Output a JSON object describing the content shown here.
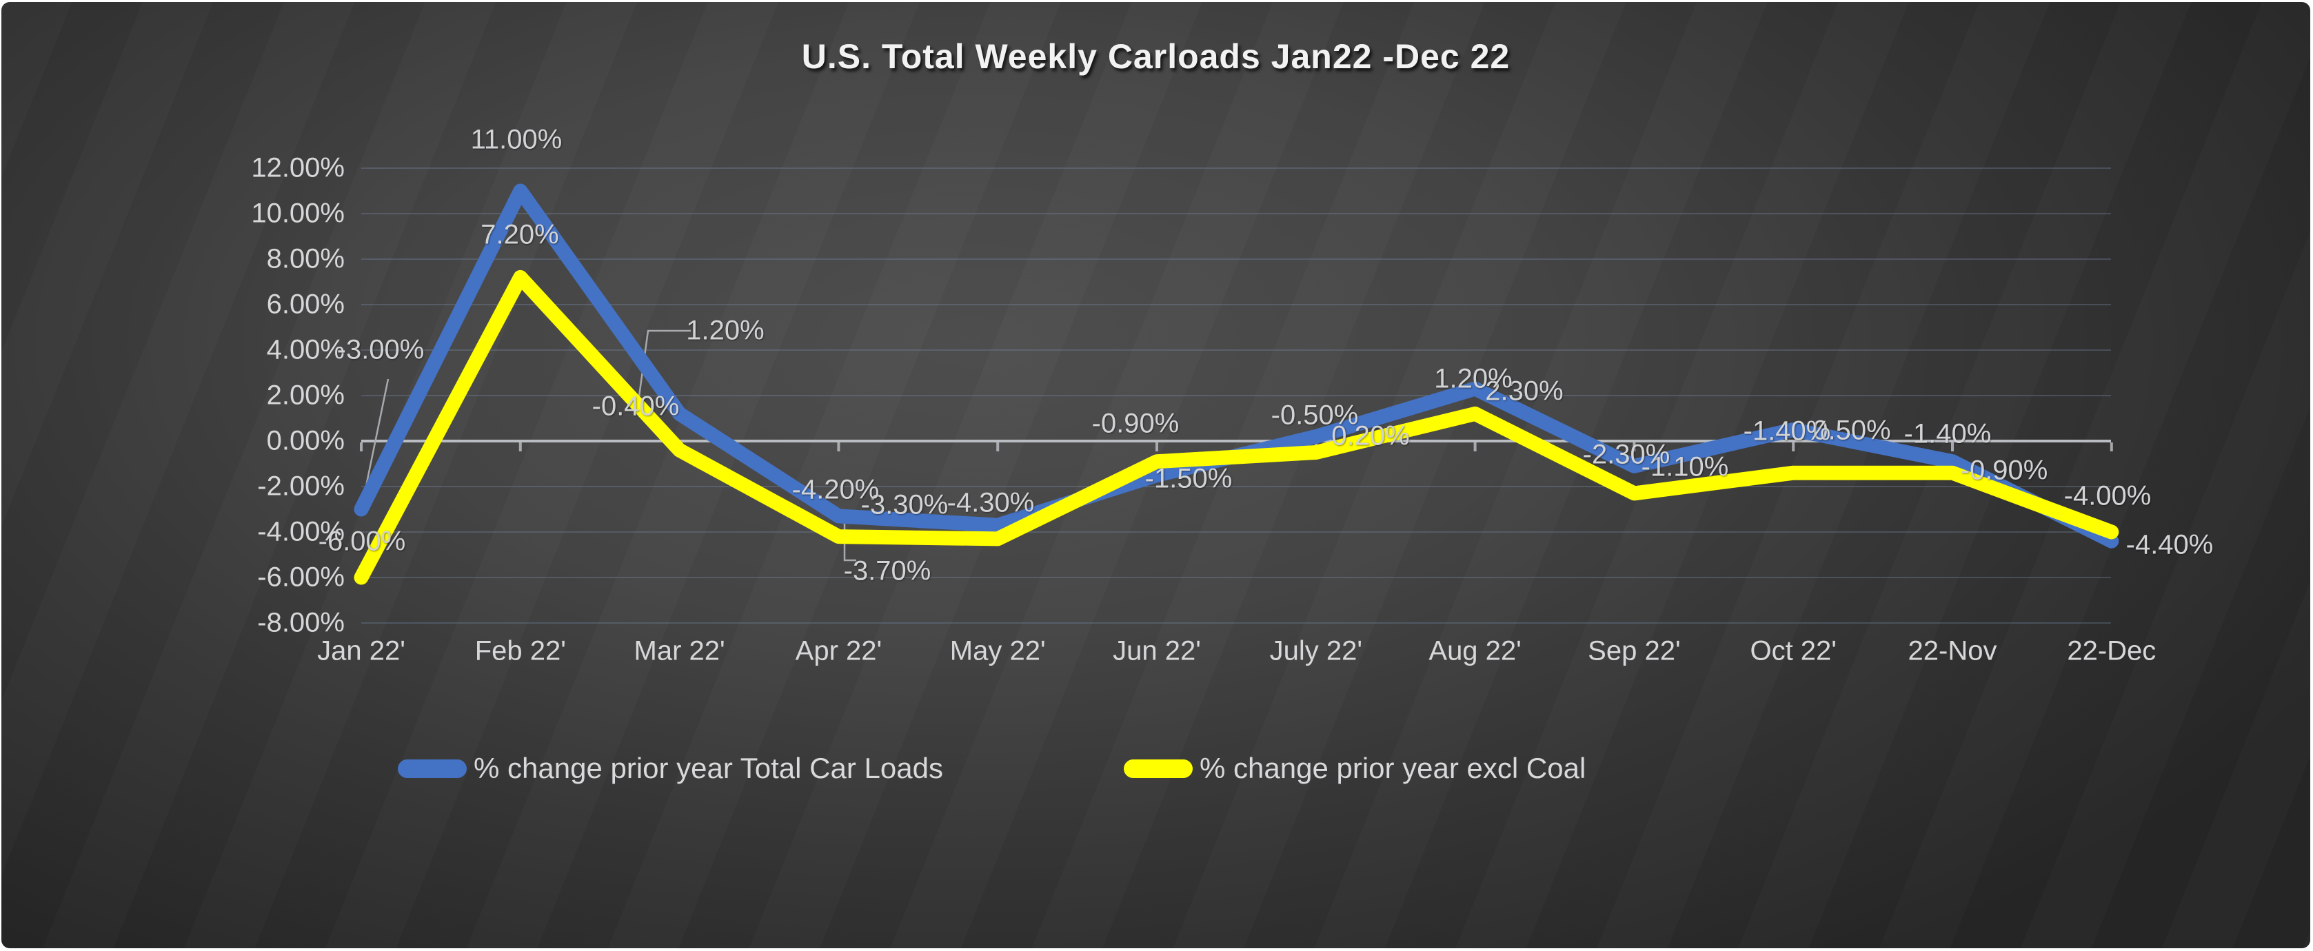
{
  "title": "U.S. Total Weekly Carloads Jan22 -Dec 22",
  "chart_data": {
    "type": "line",
    "title": "U.S. Total Weekly Carloads Jan22 -Dec 22",
    "categories": [
      "Jan 22'",
      "Feb 22'",
      "Mar 22'",
      "Apr 22'",
      "May 22'",
      "Jun 22'",
      "July 22'",
      "Aug 22'",
      "Sep 22'",
      "Oct 22'",
      "22-Nov",
      "22-Dec"
    ],
    "series": [
      {
        "name": "% change prior year Total Car Loads",
        "color": "#4472C4",
        "values": [
          -3.0,
          11.0,
          1.2,
          -3.3,
          -3.7,
          -1.5,
          0.2,
          2.3,
          -1.1,
          0.5,
          -0.9,
          -4.4
        ],
        "labels": [
          "-3.00%",
          "11.00%",
          "1.20%",
          "-3.30%",
          "-3.70%",
          "-1.50%",
          "0.20%",
          "2.30%",
          "-1.10%",
          "0.50%",
          "-0.90%",
          "-4.40%"
        ]
      },
      {
        "name": "% change prior year excl Coal",
        "color": "#FFFF00",
        "values": [
          -6.0,
          7.2,
          -0.4,
          -4.2,
          -4.3,
          -0.9,
          -0.5,
          1.2,
          -2.3,
          -1.4,
          -1.4,
          -4.0
        ],
        "labels": [
          "-6.00%",
          "7.20%",
          "-0.40%",
          "-4.20%",
          "-4.30%",
          "-0.90%",
          "-0.50%",
          "1.20%",
          "-2.30%",
          "-1.40%",
          "-1.40%",
          "-4.00%"
        ]
      }
    ],
    "y_tick_labels": [
      "12.00%",
      "10.00%",
      "8.00%",
      "6.00%",
      "4.00%",
      "2.00%",
      "0.00%",
      "-2.00%",
      "-4.00%",
      "-6.00%",
      "-8.00%"
    ],
    "y_tick_values": [
      12,
      10,
      8,
      6,
      4,
      2,
      0,
      -2,
      -4,
      -6,
      -8
    ],
    "ylim": [
      -8,
      12
    ],
    "grid": true,
    "legend_position": "bottom",
    "colors": {
      "background_center": "#4f4f4f",
      "background_edge": "#262626",
      "axis_line": "#b9bcc1",
      "gridline": "#7b8faf",
      "text": "#d6d7d8",
      "title_text": "#f2f2f2"
    }
  }
}
